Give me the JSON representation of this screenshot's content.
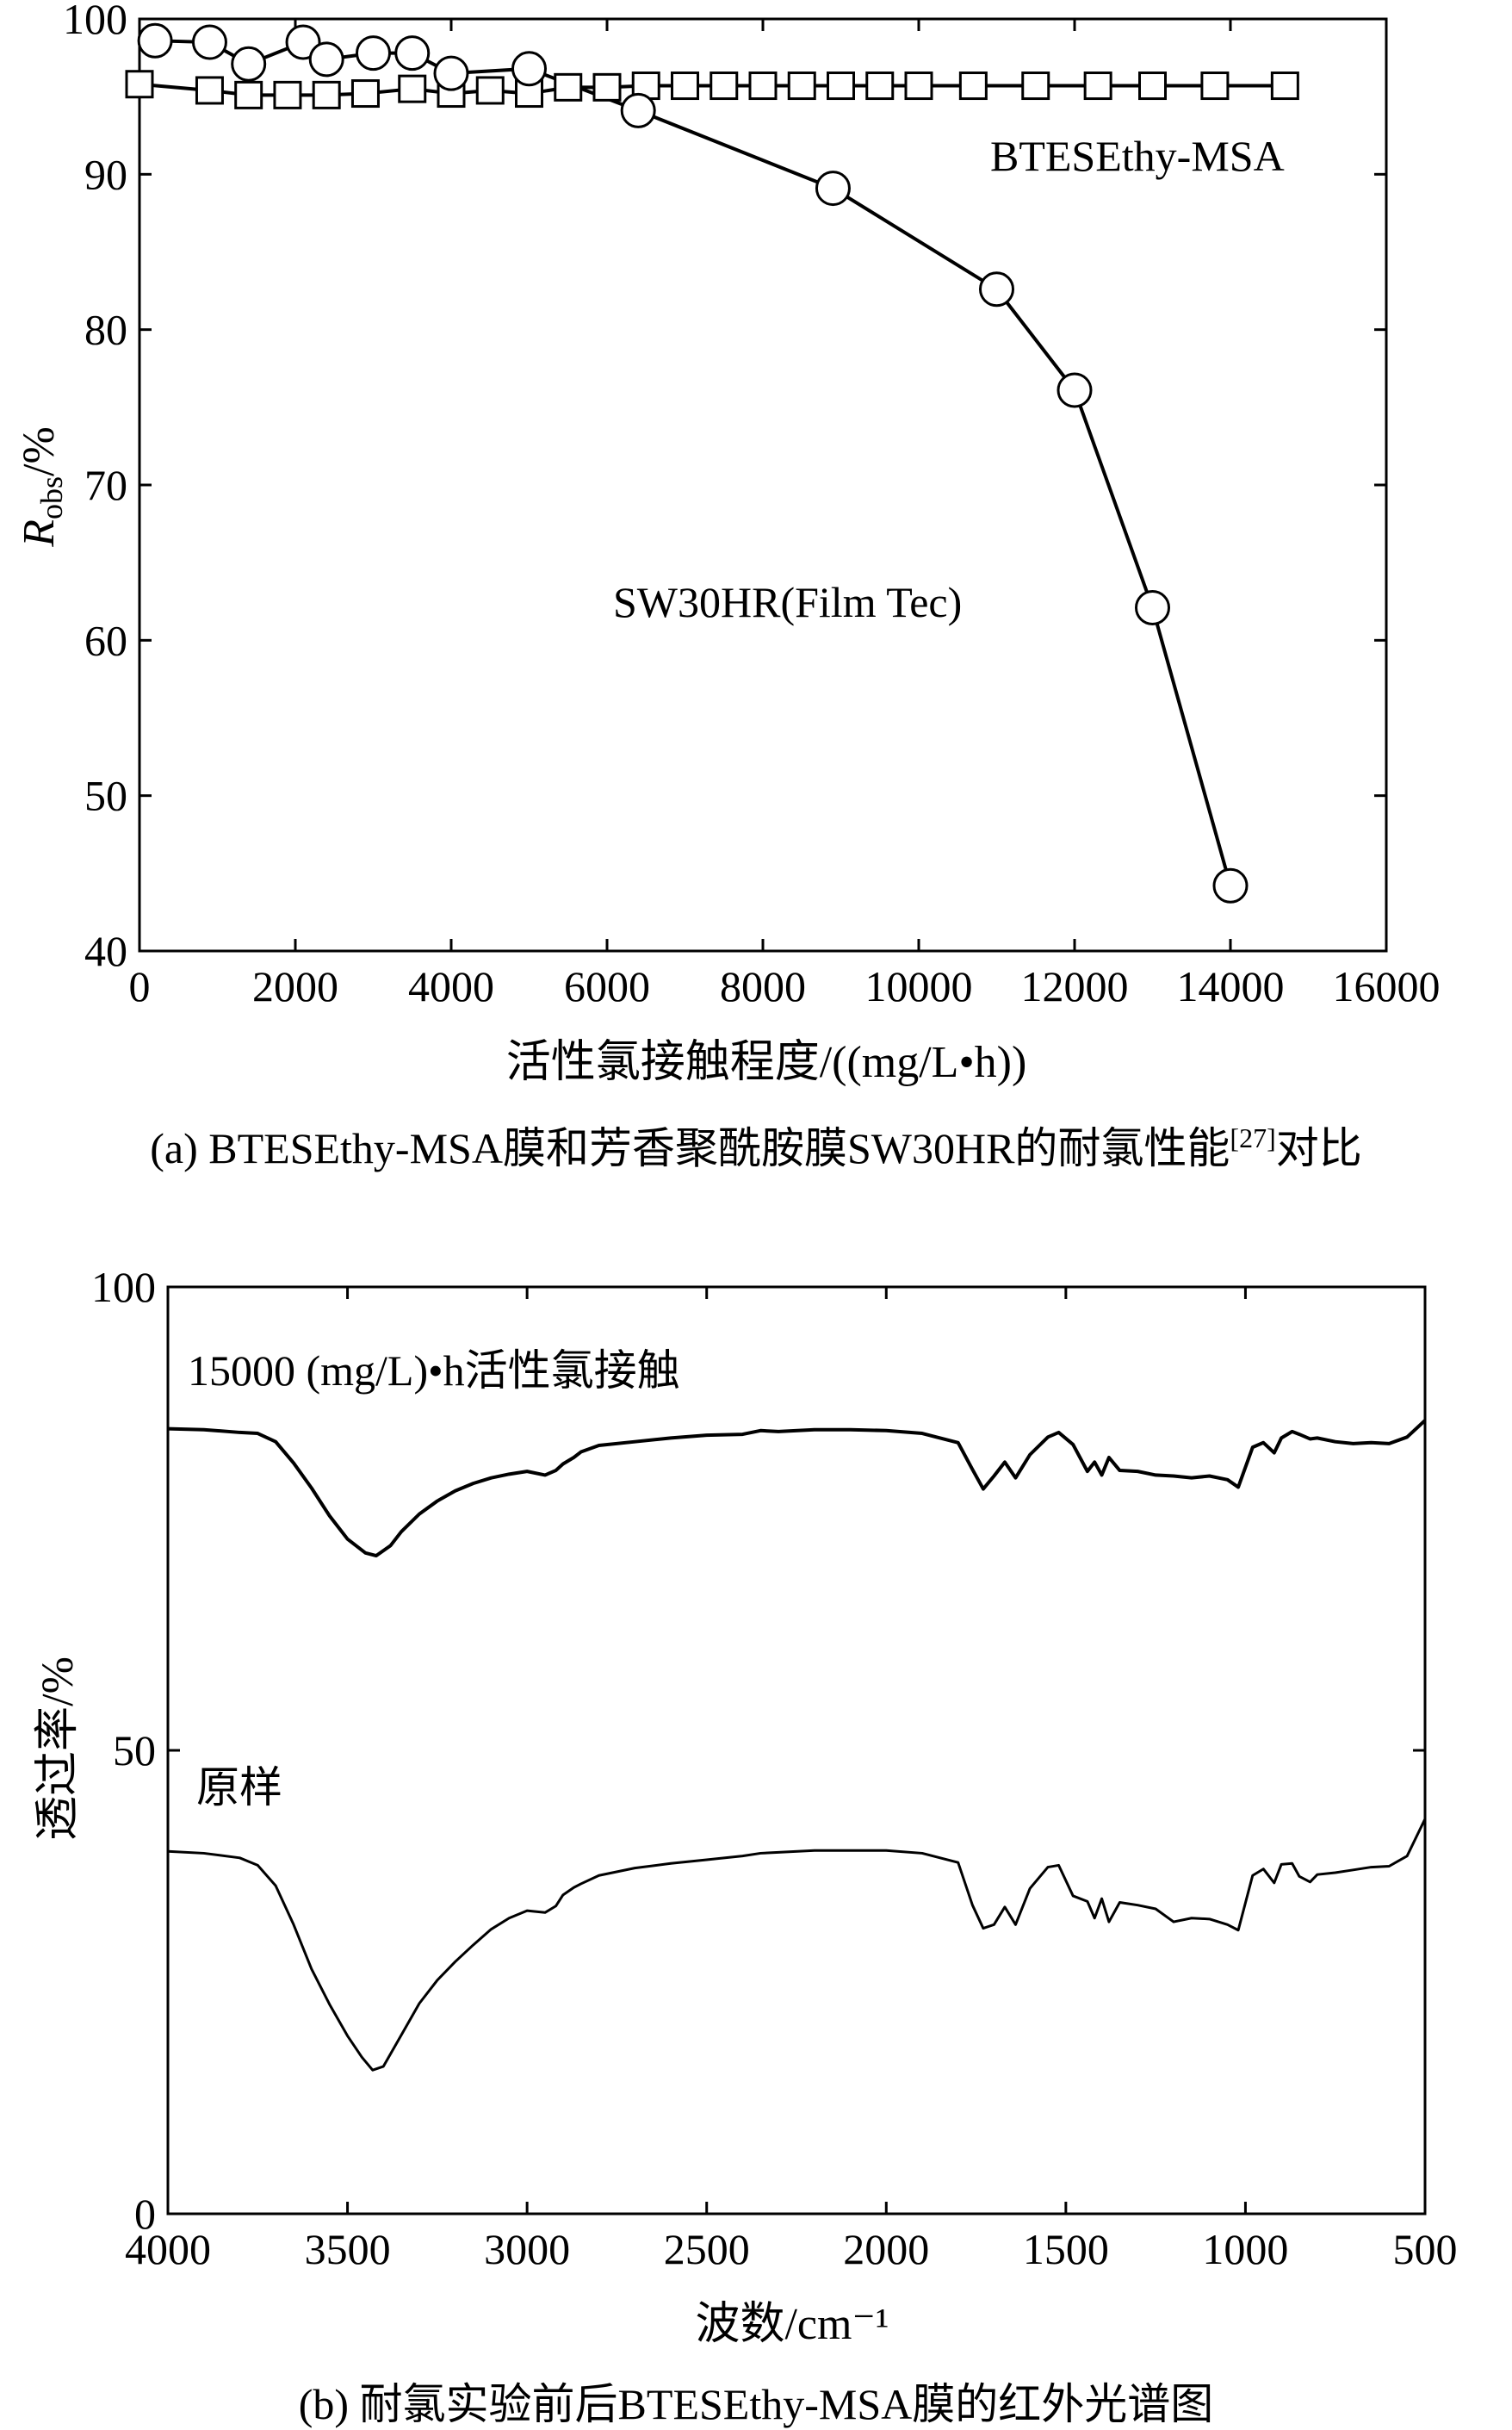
{
  "figure_a": {
    "caption_prefix": "(a) BTESEthy-MSA膜和芳香聚酰胺膜SW30HR的耐氯性能",
    "caption_ref": "[27]",
    "caption_suffix": "对比",
    "xlabel": "活性氯接触程度/((mg/L•h))",
    "ylabel_main": "R",
    "ylabel_sub": "obs",
    "ylabel_unit": "/%",
    "annotations": [
      "BTESEthy-MSA",
      "SW30HR(Film  Tec)"
    ],
    "x_ticks": [
      "0",
      "2000",
      "4000",
      "6000",
      "8000",
      "10000",
      "12000",
      "14000",
      "16000"
    ],
    "y_ticks": [
      "40",
      "50",
      "60",
      "70",
      "80",
      "90",
      "100"
    ]
  },
  "figure_b": {
    "caption": "(b) 耐氯实验前后BTESEthy-MSA膜的红外光谱图",
    "xlabel": "波数/cm⁻¹",
    "ylabel": "透过率/%",
    "annotations": [
      "15000 (mg/L)•h活性氯接触",
      "原样"
    ],
    "x_ticks": [
      "4000",
      "3500",
      "3000",
      "2500",
      "2000",
      "1500",
      "1000",
      "500"
    ],
    "y_ticks": [
      "0",
      "50",
      "100"
    ]
  },
  "chart_data": [
    {
      "type": "line",
      "xlabel": "活性氯接触程度/((mg/L•h))",
      "ylabel": "Robs/%",
      "xlim": [
        0,
        16000
      ],
      "ylim": [
        40,
        100
      ],
      "grid": false,
      "series": [
        {
          "name": "BTESEthy-MSA",
          "marker": "square",
          "x": [
            0,
            900,
            1400,
            1900,
            2400,
            2900,
            3500,
            4000,
            4500,
            5000,
            5500,
            6000,
            6500,
            7000,
            7500,
            8000,
            8500,
            9000,
            9500,
            10000,
            10700,
            11500,
            12300,
            13000,
            13800,
            14700
          ],
          "y": [
            95.8,
            95.4,
            95.1,
            95.1,
            95.1,
            95.2,
            95.5,
            95.2,
            95.4,
            95.2,
            95.6,
            95.6,
            95.7,
            95.7,
            95.7,
            95.7,
            95.7,
            95.7,
            95.7,
            95.7,
            95.7,
            95.7,
            95.7,
            95.7,
            95.7,
            95.7
          ]
        },
        {
          "name": "SW30HR(Film  Tec)",
          "marker": "circle",
          "x": [
            200,
            900,
            1400,
            2100,
            2400,
            3000,
            3500,
            4000,
            5000,
            6400,
            8900,
            11000,
            12000,
            13000,
            14000
          ],
          "y": [
            98.6,
            98.5,
            97.1,
            98.5,
            97.4,
            97.8,
            97.8,
            96.5,
            96.8,
            94.1,
            89.1,
            82.6,
            76.1,
            62.1,
            44.2
          ]
        }
      ]
    },
    {
      "type": "line",
      "xlabel": "波数/cm⁻¹",
      "ylabel": "透过率/%",
      "xlim": [
        4000,
        500
      ],
      "ylim": [
        0,
        100
      ],
      "grid": false,
      "series": [
        {
          "name": "15000 (mg/L)•h活性氯接触",
          "x": [
            4000,
            3900,
            3800,
            3750,
            3700,
            3650,
            3600,
            3550,
            3500,
            3450,
            3420,
            3380,
            3350,
            3300,
            3250,
            3200,
            3150,
            3100,
            3050,
            3000,
            2950,
            2920,
            2900,
            2870,
            2850,
            2800,
            2700,
            2600,
            2500,
            2400,
            2350,
            2300,
            2200,
            2100,
            2000,
            1900,
            1800,
            1760,
            1730,
            1700,
            1670,
            1640,
            1600,
            1550,
            1520,
            1480,
            1440,
            1420,
            1400,
            1380,
            1350,
            1300,
            1250,
            1200,
            1150,
            1100,
            1050,
            1020,
            980,
            950,
            920,
            900,
            870,
            850,
            820,
            800,
            750,
            700,
            650,
            600,
            550,
            500
          ],
          "y": [
            84.7,
            84.6,
            84.3,
            84.2,
            83.3,
            81,
            78.3,
            75.3,
            72.8,
            71.3,
            71,
            72.1,
            73.6,
            75.5,
            76.9,
            78,
            78.8,
            79.4,
            79.8,
            80.1,
            79.7,
            80.2,
            80.9,
            81.6,
            82.2,
            82.9,
            83.3,
            83.7,
            84,
            84.1,
            84.5,
            84.4,
            84.6,
            84.6,
            84.5,
            84.2,
            83.2,
            80.3,
            78.2,
            79.6,
            81.1,
            79.4,
            81.9,
            83.8,
            84.3,
            83,
            80.1,
            81.1,
            79.7,
            81.6,
            80.2,
            80.1,
            79.7,
            79.6,
            79.4,
            79.6,
            79.2,
            78.4,
            82.7,
            83.2,
            82.1,
            83.7,
            84.4,
            84.1,
            83.6,
            83.7,
            83.3,
            83.1,
            83.2,
            83.1,
            83.8,
            85.6
          ]
        },
        {
          "name": "原样",
          "x": [
            4000,
            3900,
            3800,
            3750,
            3700,
            3650,
            3600,
            3550,
            3500,
            3460,
            3430,
            3400,
            3350,
            3300,
            3250,
            3200,
            3150,
            3100,
            3050,
            3000,
            2950,
            2920,
            2900,
            2870,
            2850,
            2800,
            2700,
            2600,
            2500,
            2400,
            2350,
            2300,
            2200,
            2100,
            2000,
            1900,
            1800,
            1760,
            1730,
            1700,
            1670,
            1640,
            1600,
            1550,
            1520,
            1480,
            1440,
            1420,
            1400,
            1380,
            1350,
            1300,
            1250,
            1200,
            1150,
            1100,
            1050,
            1020,
            980,
            950,
            920,
            900,
            870,
            850,
            820,
            800,
            750,
            700,
            650,
            600,
            550,
            500
          ],
          "y": [
            39.1,
            38.9,
            38.4,
            37.6,
            35.4,
            31.2,
            26.4,
            22.6,
            19.2,
            16.9,
            15.5,
            15.9,
            19.3,
            22.7,
            25.2,
            27.2,
            29,
            30.7,
            31.9,
            32.7,
            32.5,
            33.2,
            34.4,
            35.2,
            35.6,
            36.5,
            37.3,
            37.8,
            38.2,
            38.6,
            38.9,
            39,
            39.2,
            39.2,
            39.2,
            38.9,
            37.9,
            33.3,
            30.8,
            31.2,
            33.1,
            31.2,
            35.1,
            37.4,
            37.6,
            34.3,
            33.7,
            31.9,
            34,
            31.5,
            33.6,
            33.3,
            32.9,
            31.5,
            31.9,
            31.8,
            31.2,
            30.6,
            36.5,
            37.2,
            35.7,
            37.7,
            37.8,
            36.4,
            35.8,
            36.6,
            36.8,
            37.1,
            37.4,
            37.5,
            38.6,
            42.6
          ]
        }
      ]
    }
  ]
}
